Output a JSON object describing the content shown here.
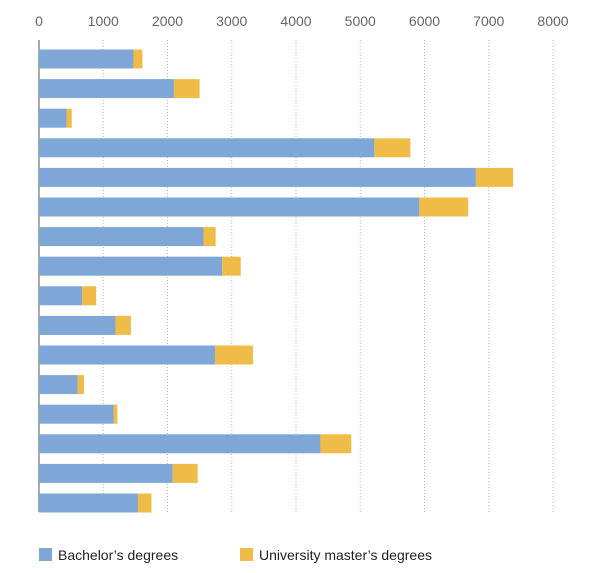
{
  "chart_data": {
    "type": "bar",
    "orientation": "horizontal",
    "stacked": true,
    "x_ticks": [
      0,
      1000,
      2000,
      3000,
      4000,
      5000,
      6000,
      7000,
      8000
    ],
    "xlim": [
      0,
      8000
    ],
    "gridlines": "vertical-dotted",
    "legend_position": "bottom-left",
    "series": [
      {
        "name": "Bachelor’s degrees",
        "color": "#7ea6d6",
        "values": [
          1470,
          2100,
          430,
          5220,
          6800,
          5920,
          2560,
          2850,
          670,
          1190,
          2740,
          600,
          1160,
          4380,
          2080,
          1540
        ]
      },
      {
        "name": "University master’s degrees",
        "color": "#f0bc48",
        "values": [
          140,
          400,
          80,
          560,
          580,
          760,
          190,
          290,
          220,
          240,
          590,
          100,
          60,
          480,
          390,
          210
        ]
      }
    ]
  }
}
